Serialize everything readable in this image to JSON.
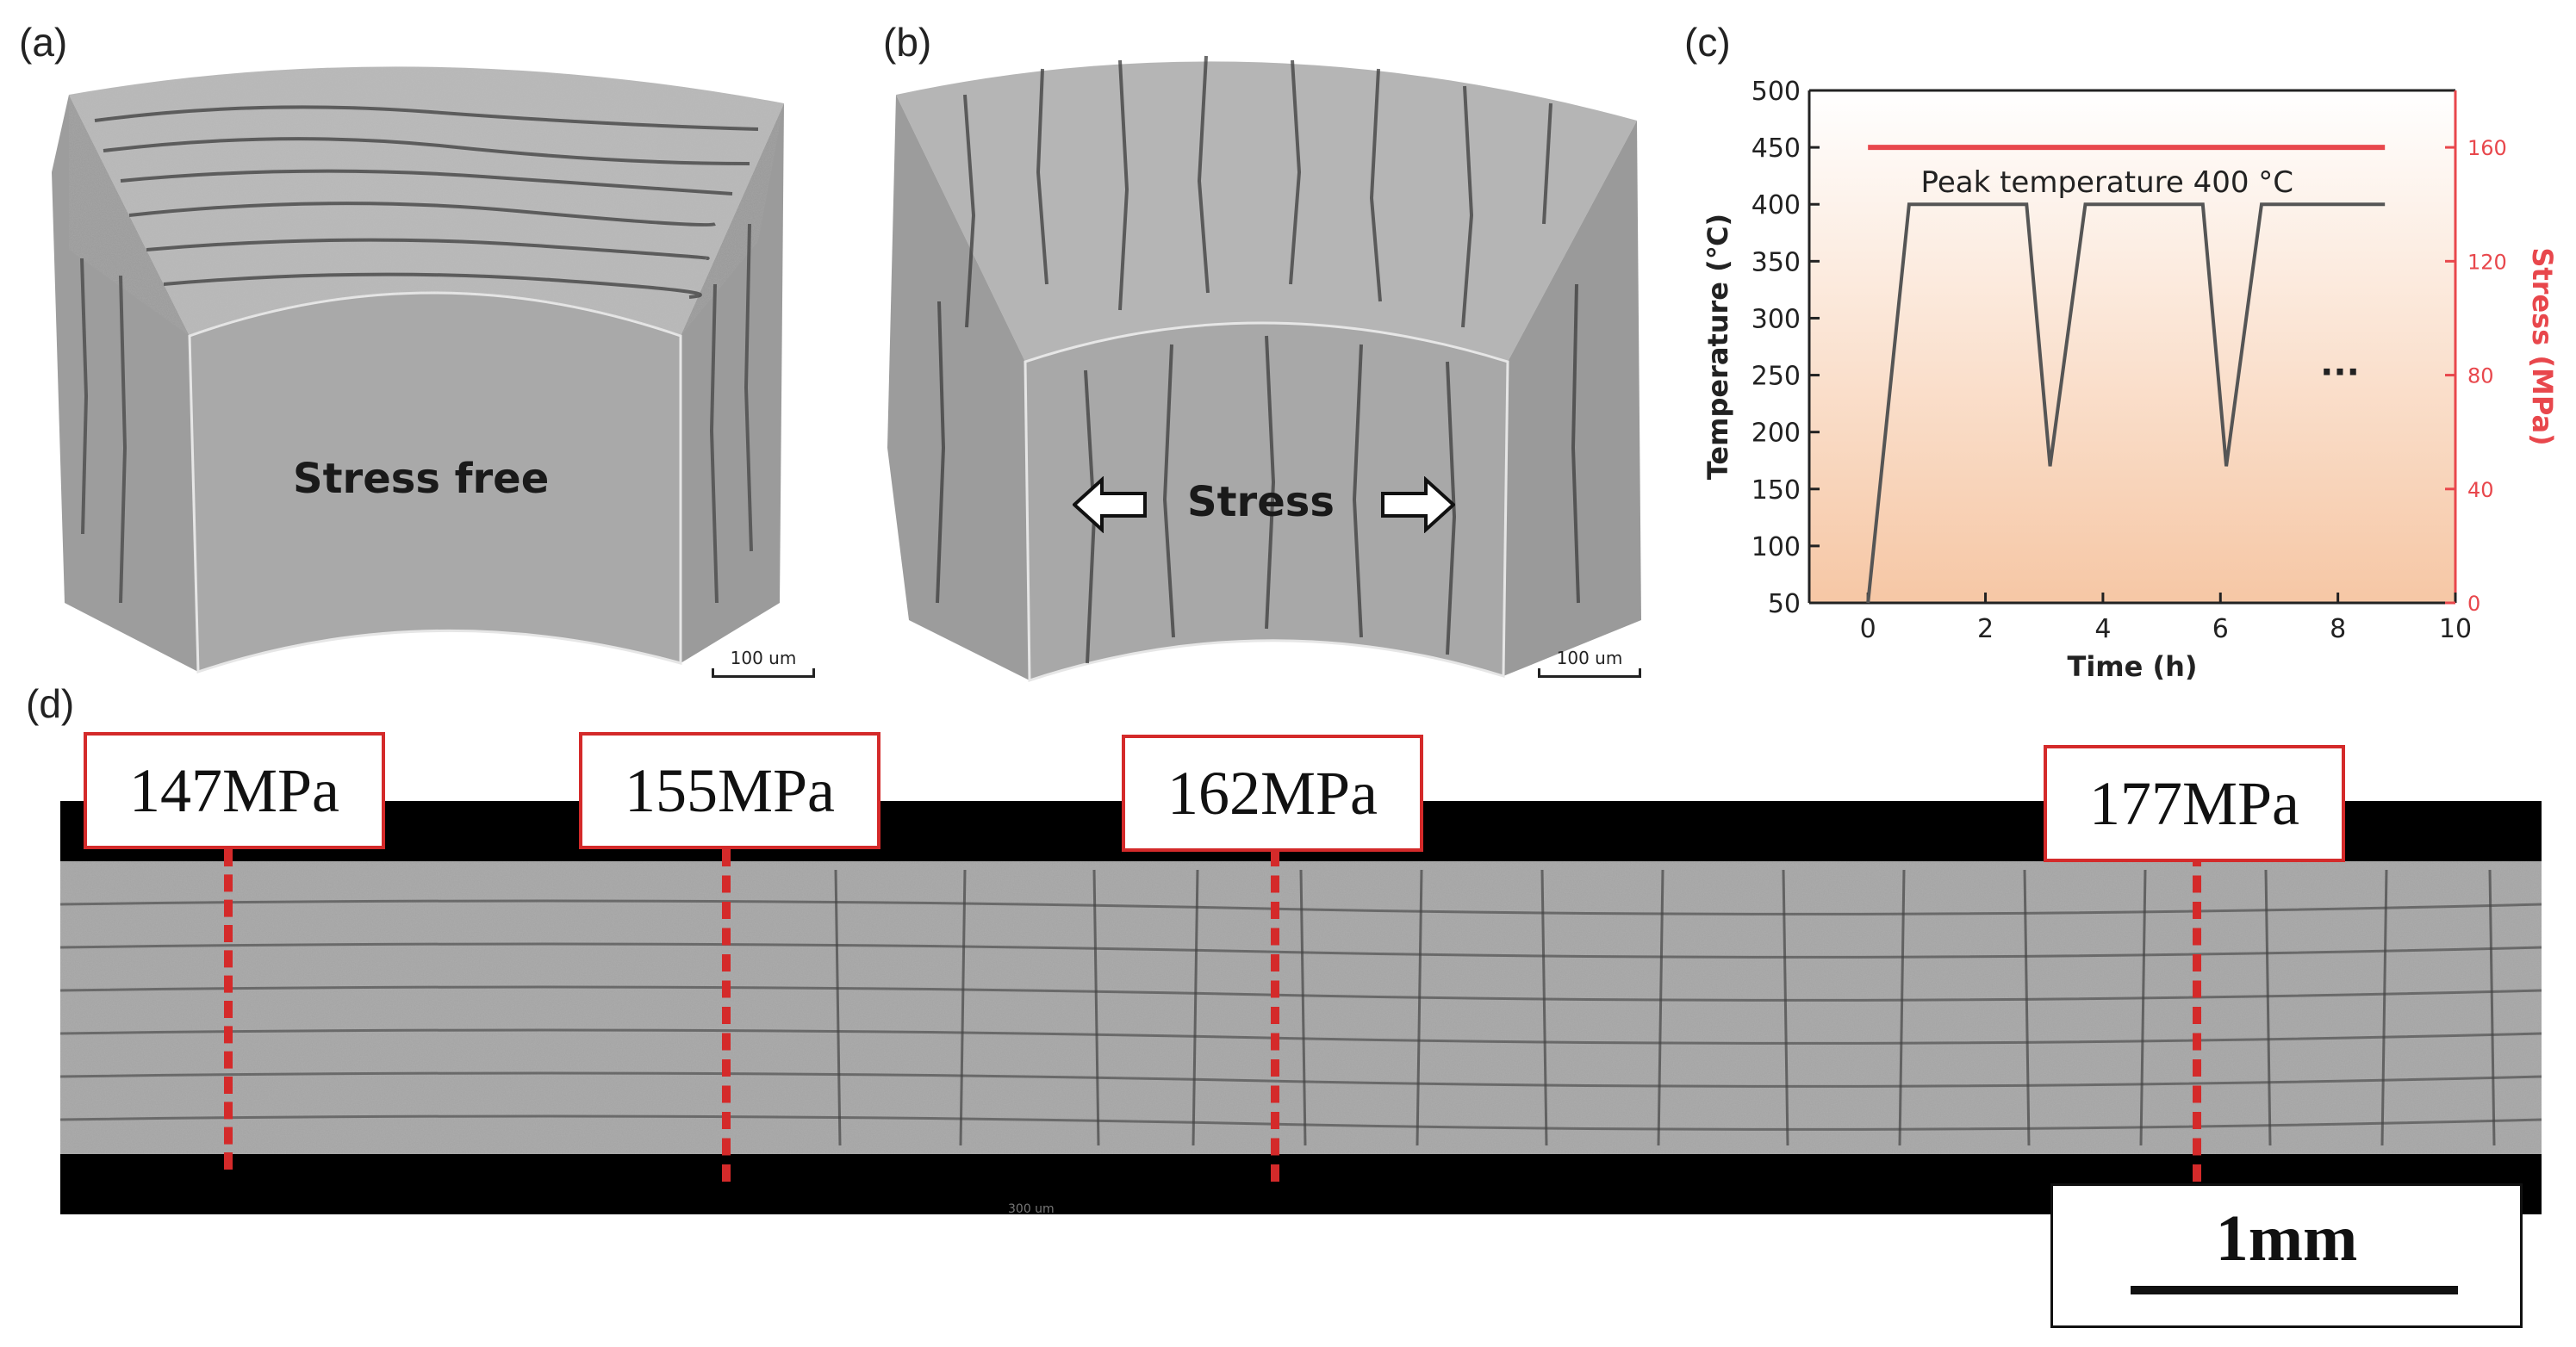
{
  "panels": {
    "a": {
      "label": "(a)",
      "caption": "Stress free",
      "scalebar": "100 um"
    },
    "b": {
      "label": "(b)",
      "caption": "Stress",
      "scalebar": "100 um"
    },
    "c": {
      "label": "(c)"
    },
    "d": {
      "label": "(d)",
      "scalebar": "1mm",
      "markers": [
        "147MPa",
        "155MPa",
        "162MPa",
        "177MPa"
      ],
      "faint_text": "300 um"
    }
  },
  "chart_data": {
    "type": "line",
    "title": "",
    "xlabel": "Time (h)",
    "ylabel": "Temperature (℃)",
    "y2label": "Stress (MPa)",
    "xlim": [
      -1,
      10
    ],
    "ylim": [
      50,
      500
    ],
    "y2lim": [
      0,
      180
    ],
    "x_ticks": [
      "0",
      "2",
      "4",
      "6",
      "8",
      "10"
    ],
    "y_ticks": [
      "50",
      "100",
      "150",
      "200",
      "250",
      "300",
      "350",
      "400",
      "450",
      "500"
    ],
    "y2_ticks": [
      "0",
      "40",
      "80",
      "120",
      "160"
    ],
    "annotation": "Peak temperature 400 °C",
    "ellipsis": "...",
    "series": [
      {
        "color": "#555555",
        "points": [
          [
            0,
            50
          ],
          [
            0.7,
            400
          ],
          [
            2.7,
            400
          ],
          [
            3.1,
            170
          ],
          [
            3.7,
            400
          ],
          [
            5.7,
            400
          ],
          [
            6.1,
            170
          ],
          [
            6.7,
            400
          ],
          [
            8.8,
            400
          ]
        ]
      },
      {
        "color": "#e8474c",
        "axis": "right",
        "points": [
          [
            0,
            160
          ],
          [
            8.8,
            160
          ]
        ]
      }
    ],
    "colors": {
      "temperature": "#555555",
      "stress": "#e8474c",
      "y2_axis": "#e8474c"
    },
    "background": "gradient light-to-peach"
  }
}
